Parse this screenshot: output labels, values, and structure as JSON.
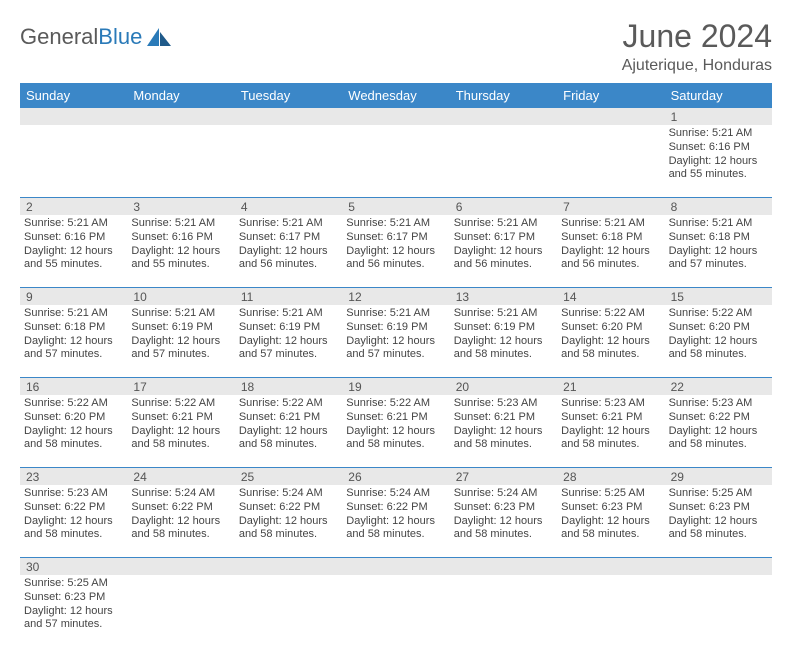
{
  "brand": {
    "part1": "General",
    "part2": "Blue"
  },
  "title": "June 2024",
  "location": "Ajuterique, Honduras",
  "colors": {
    "header_bg": "#3b87c8",
    "header_text": "#ffffff",
    "daynum_bg": "#e8e8e8",
    "text": "#444444",
    "title": "#5a5a5a",
    "rule": "#3b87c8"
  },
  "dayNames": [
    "Sunday",
    "Monday",
    "Tuesday",
    "Wednesday",
    "Thursday",
    "Friday",
    "Saturday"
  ],
  "weeks": [
    [
      null,
      null,
      null,
      null,
      null,
      null,
      {
        "n": "1",
        "sr": "5:21 AM",
        "ss": "6:16 PM",
        "dl": "12 hours and 55 minutes."
      }
    ],
    [
      {
        "n": "2",
        "sr": "5:21 AM",
        "ss": "6:16 PM",
        "dl": "12 hours and 55 minutes."
      },
      {
        "n": "3",
        "sr": "5:21 AM",
        "ss": "6:16 PM",
        "dl": "12 hours and 55 minutes."
      },
      {
        "n": "4",
        "sr": "5:21 AM",
        "ss": "6:17 PM",
        "dl": "12 hours and 56 minutes."
      },
      {
        "n": "5",
        "sr": "5:21 AM",
        "ss": "6:17 PM",
        "dl": "12 hours and 56 minutes."
      },
      {
        "n": "6",
        "sr": "5:21 AM",
        "ss": "6:17 PM",
        "dl": "12 hours and 56 minutes."
      },
      {
        "n": "7",
        "sr": "5:21 AM",
        "ss": "6:18 PM",
        "dl": "12 hours and 56 minutes."
      },
      {
        "n": "8",
        "sr": "5:21 AM",
        "ss": "6:18 PM",
        "dl": "12 hours and 57 minutes."
      }
    ],
    [
      {
        "n": "9",
        "sr": "5:21 AM",
        "ss": "6:18 PM",
        "dl": "12 hours and 57 minutes."
      },
      {
        "n": "10",
        "sr": "5:21 AM",
        "ss": "6:19 PM",
        "dl": "12 hours and 57 minutes."
      },
      {
        "n": "11",
        "sr": "5:21 AM",
        "ss": "6:19 PM",
        "dl": "12 hours and 57 minutes."
      },
      {
        "n": "12",
        "sr": "5:21 AM",
        "ss": "6:19 PM",
        "dl": "12 hours and 57 minutes."
      },
      {
        "n": "13",
        "sr": "5:21 AM",
        "ss": "6:19 PM",
        "dl": "12 hours and 58 minutes."
      },
      {
        "n": "14",
        "sr": "5:22 AM",
        "ss": "6:20 PM",
        "dl": "12 hours and 58 minutes."
      },
      {
        "n": "15",
        "sr": "5:22 AM",
        "ss": "6:20 PM",
        "dl": "12 hours and 58 minutes."
      }
    ],
    [
      {
        "n": "16",
        "sr": "5:22 AM",
        "ss": "6:20 PM",
        "dl": "12 hours and 58 minutes."
      },
      {
        "n": "17",
        "sr": "5:22 AM",
        "ss": "6:21 PM",
        "dl": "12 hours and 58 minutes."
      },
      {
        "n": "18",
        "sr": "5:22 AM",
        "ss": "6:21 PM",
        "dl": "12 hours and 58 minutes."
      },
      {
        "n": "19",
        "sr": "5:22 AM",
        "ss": "6:21 PM",
        "dl": "12 hours and 58 minutes."
      },
      {
        "n": "20",
        "sr": "5:23 AM",
        "ss": "6:21 PM",
        "dl": "12 hours and 58 minutes."
      },
      {
        "n": "21",
        "sr": "5:23 AM",
        "ss": "6:21 PM",
        "dl": "12 hours and 58 minutes."
      },
      {
        "n": "22",
        "sr": "5:23 AM",
        "ss": "6:22 PM",
        "dl": "12 hours and 58 minutes."
      }
    ],
    [
      {
        "n": "23",
        "sr": "5:23 AM",
        "ss": "6:22 PM",
        "dl": "12 hours and 58 minutes."
      },
      {
        "n": "24",
        "sr": "5:24 AM",
        "ss": "6:22 PM",
        "dl": "12 hours and 58 minutes."
      },
      {
        "n": "25",
        "sr": "5:24 AM",
        "ss": "6:22 PM",
        "dl": "12 hours and 58 minutes."
      },
      {
        "n": "26",
        "sr": "5:24 AM",
        "ss": "6:22 PM",
        "dl": "12 hours and 58 minutes."
      },
      {
        "n": "27",
        "sr": "5:24 AM",
        "ss": "6:23 PM",
        "dl": "12 hours and 58 minutes."
      },
      {
        "n": "28",
        "sr": "5:25 AM",
        "ss": "6:23 PM",
        "dl": "12 hours and 58 minutes."
      },
      {
        "n": "29",
        "sr": "5:25 AM",
        "ss": "6:23 PM",
        "dl": "12 hours and 58 minutes."
      }
    ],
    [
      {
        "n": "30",
        "sr": "5:25 AM",
        "ss": "6:23 PM",
        "dl": "12 hours and 57 minutes."
      },
      null,
      null,
      null,
      null,
      null,
      null
    ]
  ],
  "labels": {
    "sunrise": "Sunrise: ",
    "sunset": "Sunset: ",
    "daylight": "Daylight: "
  }
}
